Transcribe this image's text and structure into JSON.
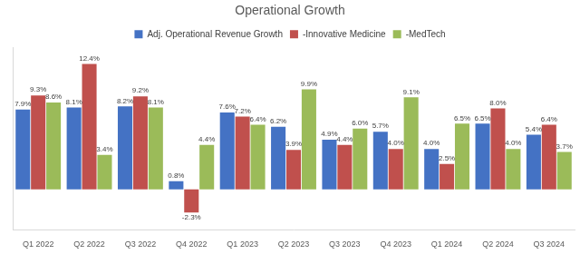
{
  "chart_data": {
    "type": "bar",
    "title": "Operational Growth",
    "categories": [
      "Q1 2022",
      "Q2 2022",
      "Q3 2022",
      "Q4 2022",
      "Q1 2023",
      "Q2 2023",
      "Q3 2023",
      "Q4 2023",
      "Q1 2024",
      "Q2 2024",
      "Q3 2024"
    ],
    "series": [
      {
        "name": "Adj. Operational Revenue Growth",
        "color": "#4472c4",
        "values": [
          7.9,
          8.1,
          8.2,
          0.8,
          7.6,
          6.2,
          4.9,
          5.7,
          4.0,
          6.5,
          5.4
        ],
        "value_labels": [
          "7.9%",
          "8.1%",
          "8.2%",
          "0.8%",
          "7.6%",
          "6.2%",
          "4.9%",
          "5.7%",
          "4.0%",
          "6.5%",
          "5.4%"
        ]
      },
      {
        "name": "-Innovative Medicine",
        "color": "#c0504d",
        "values": [
          9.3,
          12.4,
          9.2,
          -2.3,
          7.2,
          3.9,
          4.4,
          4.0,
          2.5,
          8.0,
          6.4
        ],
        "value_labels": [
          "9.3%",
          "12.4%",
          "9.2%",
          "-2.3%",
          "7.2%",
          "3.9%",
          "4.4%",
          "4.0%",
          "2.5%",
          "8.0%",
          "6.4%"
        ]
      },
      {
        "name": "-MedTech",
        "color": "#9bbb59",
        "values": [
          8.6,
          3.4,
          8.1,
          4.4,
          6.4,
          9.9,
          6.0,
          9.1,
          6.5,
          4.0,
          3.7
        ],
        "value_labels": [
          "8.6%",
          "3.4%",
          "8.1%",
          "4.4%",
          "6.4%",
          "9.9%",
          "6.0%",
          "9.1%",
          "6.5%",
          "4.0%",
          "3.7%"
        ]
      }
    ],
    "ylim": [
      -4,
      14
    ],
    "grid": false,
    "legend": "top",
    "data_labels": true,
    "tick_labels": "x"
  }
}
